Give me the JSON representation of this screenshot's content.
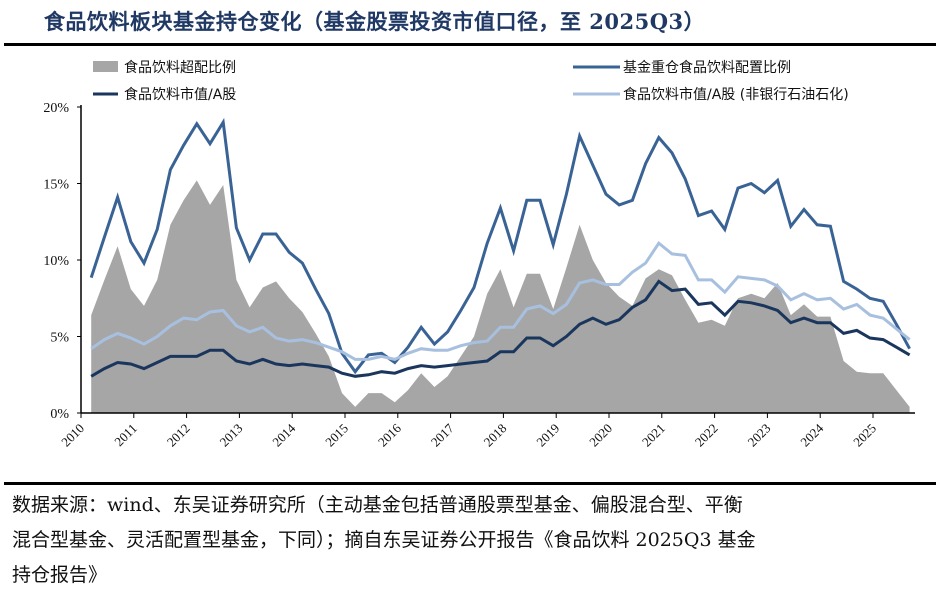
{
  "title": "食品饮料板块基金持仓变化（基金股票投资市值口径，至 2025Q3）",
  "footer": {
    "lines": [
      "数据来源：wind、东吴证券研究所（主动基金包括普通股票型基金、偏股混合型、平衡",
      "混合型基金、灵活配置型基金，下同）；摘自东吴证券公开报告《食品饮料 2025Q3 基金",
      "持仓报告》"
    ]
  },
  "chart_data": {
    "type": "line",
    "title": "",
    "xlabel": "",
    "ylabel": "",
    "ylim": [
      0,
      20
    ],
    "y_ticks": [
      "0%",
      "5%",
      "10%",
      "15%",
      "20%"
    ],
    "x_ticks": [
      "2010",
      "2011",
      "2012",
      "2013",
      "2014",
      "2015",
      "2016",
      "2017",
      "2018",
      "2019",
      "2020",
      "2021",
      "2022",
      "2023",
      "2024",
      "2025"
    ],
    "grid": false,
    "legend_position": "top",
    "unit": "%",
    "x": [
      "2010Q1",
      "2010Q2",
      "2010Q3",
      "2010Q4",
      "2011Q1",
      "2011Q2",
      "2011Q3",
      "2011Q4",
      "2012Q1",
      "2012Q2",
      "2012Q3",
      "2012Q4",
      "2013Q1",
      "2013Q2",
      "2013Q3",
      "2013Q4",
      "2014Q1",
      "2014Q2",
      "2014Q3",
      "2014Q4",
      "2015Q1",
      "2015Q2",
      "2015Q3",
      "2015Q4",
      "2016Q1",
      "2016Q2",
      "2016Q3",
      "2016Q4",
      "2017Q1",
      "2017Q2",
      "2017Q3",
      "2017Q4",
      "2018Q1",
      "2018Q2",
      "2018Q3",
      "2018Q4",
      "2019Q1",
      "2019Q2",
      "2019Q3",
      "2019Q4",
      "2020Q1",
      "2020Q2",
      "2020Q3",
      "2020Q4",
      "2021Q1",
      "2021Q2",
      "2021Q3",
      "2021Q4",
      "2022Q1",
      "2022Q2",
      "2022Q3",
      "2022Q4",
      "2023Q1",
      "2023Q2",
      "2023Q3",
      "2023Q4",
      "2024Q1",
      "2024Q2",
      "2024Q3",
      "2024Q4",
      "2025Q1",
      "2025Q2",
      "2025Q3"
    ],
    "series": [
      {
        "name": "食品饮料超配比例",
        "kind": "area",
        "color": "#a6a6a6",
        "values": [
          6.4,
          8.7,
          10.9,
          8.1,
          7.0,
          8.7,
          12.3,
          13.9,
          15.2,
          13.6,
          14.9,
          8.7,
          6.9,
          8.2,
          8.6,
          7.5,
          6.6,
          5.2,
          3.7,
          1.3,
          0.4,
          1.3,
          1.3,
          0.7,
          1.5,
          2.6,
          1.7,
          2.4,
          3.7,
          5.0,
          7.8,
          9.4,
          6.9,
          9.1,
          9.1,
          6.8,
          9.5,
          12.3,
          10.0,
          8.5,
          7.6,
          7.0,
          8.8,
          9.4,
          9.0,
          7.4,
          5.9,
          6.1,
          5.7,
          7.5,
          7.8,
          7.5,
          8.5,
          6.4,
          7.1,
          6.3,
          6.3,
          3.4,
          2.7,
          2.6,
          2.6,
          1.5,
          0.4
        ]
      },
      {
        "name": "基金重仓食品饮料配置比例",
        "kind": "line",
        "color": "#3a6395",
        "values": [
          8.85,
          11.5,
          14.1,
          11.2,
          9.8,
          12.0,
          15.9,
          17.5,
          18.9,
          17.6,
          19.0,
          12.1,
          10.0,
          11.7,
          11.7,
          10.5,
          9.8,
          8.1,
          6.5,
          3.9,
          2.7,
          3.8,
          3.9,
          3.3,
          4.3,
          5.6,
          4.5,
          5.3,
          6.7,
          8.2,
          11.1,
          13.4,
          10.6,
          13.9,
          13.9,
          11.0,
          14.3,
          18.1,
          16.2,
          14.3,
          13.6,
          13.9,
          16.3,
          18.0,
          17.0,
          15.3,
          12.9,
          13.2,
          12.0,
          14.7,
          15.0,
          14.4,
          15.2,
          12.2,
          13.3,
          12.3,
          12.2,
          8.6,
          8.1,
          7.5,
          7.3,
          5.8,
          4.2
        ]
      },
      {
        "name": "食品饮料市值/A股",
        "kind": "line",
        "color": "#1b365d",
        "values": [
          2.4,
          2.9,
          3.3,
          3.2,
          2.9,
          3.3,
          3.7,
          3.7,
          3.7,
          4.1,
          4.1,
          3.4,
          3.2,
          3.5,
          3.2,
          3.1,
          3.2,
          3.1,
          3.0,
          2.6,
          2.4,
          2.5,
          2.7,
          2.6,
          2.9,
          3.1,
          3.0,
          3.1,
          3.2,
          3.3,
          3.4,
          4.0,
          4.0,
          4.9,
          4.9,
          4.4,
          5.0,
          5.8,
          6.2,
          5.8,
          6.1,
          6.9,
          7.4,
          8.6,
          8.0,
          8.1,
          7.1,
          7.2,
          6.4,
          7.3,
          7.2,
          7.0,
          6.7,
          5.9,
          6.2,
          5.9,
          5.9,
          5.2,
          5.4,
          4.9,
          4.8,
          4.3,
          3.8
        ]
      },
      {
        "name": "食品饮料市值/A股（非银行石油石化）",
        "kind": "line",
        "color": "#a8c0df",
        "values": [
          4.2,
          4.8,
          5.2,
          4.9,
          4.5,
          5.0,
          5.7,
          6.2,
          6.1,
          6.6,
          6.7,
          5.7,
          5.3,
          5.6,
          4.9,
          4.7,
          4.8,
          4.6,
          4.3,
          4.0,
          3.5,
          3.5,
          3.7,
          3.5,
          3.9,
          4.2,
          4.1,
          4.1,
          4.4,
          4.6,
          4.7,
          5.6,
          5.6,
          6.8,
          7.0,
          6.5,
          7.1,
          8.5,
          8.7,
          8.4,
          8.4,
          9.2,
          9.8,
          11.1,
          10.4,
          10.3,
          8.7,
          8.7,
          7.9,
          8.9,
          8.8,
          8.7,
          8.3,
          7.4,
          7.8,
          7.4,
          7.5,
          6.8,
          7.1,
          6.4,
          6.2,
          5.5,
          4.8
        ]
      }
    ],
    "legend": [
      "食品饮料超配比例",
      "基金重仓食品饮料配置比例",
      "食品饮料市值/A股",
      "食品饮料市值/A股 (非银行石油石化)"
    ]
  }
}
